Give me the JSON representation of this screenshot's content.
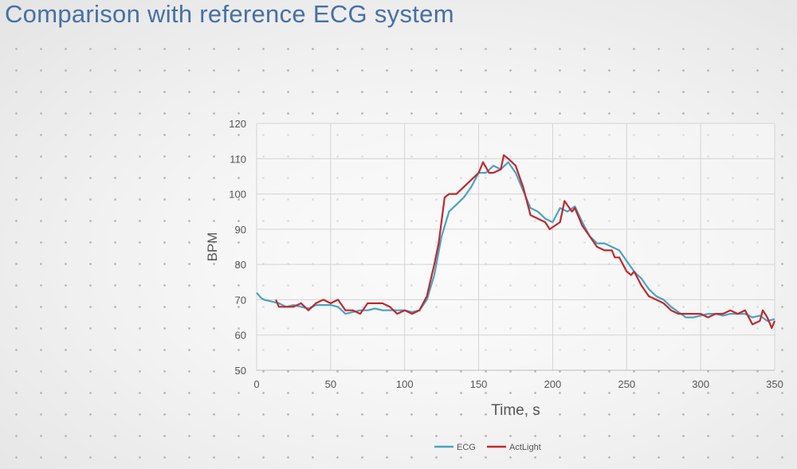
{
  "title": "Comparison with reference ECG system",
  "chart_data": {
    "type": "line",
    "title": "",
    "xlabel": "Time, s",
    "ylabel": "BPM",
    "xlim": [
      0,
      350
    ],
    "ylim": [
      50,
      120
    ],
    "xticks": [
      0,
      50,
      100,
      150,
      200,
      250,
      300,
      350
    ],
    "yticks": [
      50,
      60,
      70,
      80,
      90,
      100,
      110,
      120
    ],
    "grid": true,
    "legend": "bottom-center",
    "series": [
      {
        "name": "ECG",
        "color": "#4aa2c2",
        "x": [
          0,
          3,
          5,
          10,
          15,
          20,
          25,
          30,
          35,
          40,
          45,
          50,
          55,
          60,
          65,
          70,
          75,
          80,
          85,
          90,
          95,
          100,
          105,
          110,
          115,
          120,
          125,
          130,
          135,
          140,
          145,
          150,
          155,
          160,
          165,
          170,
          175,
          180,
          185,
          190,
          195,
          200,
          205,
          210,
          215,
          220,
          225,
          230,
          235,
          240,
          245,
          250,
          255,
          260,
          265,
          270,
          275,
          280,
          285,
          290,
          295,
          300,
          305,
          310,
          315,
          320,
          325,
          330,
          335,
          340,
          345,
          350
        ],
        "y": [
          72,
          70.5,
          70,
          69.5,
          69,
          68,
          68.5,
          68,
          67.5,
          68.5,
          68.5,
          68.5,
          68,
          66,
          66.5,
          67,
          67,
          67.5,
          67,
          67,
          67,
          67,
          66.5,
          67,
          70,
          77,
          88,
          95,
          97,
          99,
          102,
          106,
          106,
          108,
          107,
          109,
          106,
          101,
          96,
          95,
          93,
          92,
          96,
          95,
          96.5,
          92,
          88,
          86,
          86,
          85,
          84,
          81,
          78,
          76,
          73,
          71,
          70,
          68,
          66.5,
          65,
          65,
          65.5,
          66,
          66,
          65.5,
          66,
          66,
          66,
          65,
          65.5,
          64,
          64.5
        ]
      },
      {
        "name": "ActLight",
        "color": "#c0282d",
        "x": [
          13,
          15,
          20,
          25,
          30,
          35,
          40,
          45,
          50,
          55,
          60,
          65,
          70,
          75,
          80,
          85,
          90,
          95,
          100,
          105,
          110,
          115,
          120,
          123,
          127,
          130,
          135,
          140,
          145,
          150,
          153,
          157,
          160,
          165,
          167,
          170,
          175,
          180,
          185,
          190,
          195,
          198,
          205,
          208,
          213,
          215,
          220,
          225,
          230,
          235,
          240,
          242,
          245,
          250,
          253,
          255,
          260,
          265,
          270,
          275,
          280,
          285,
          290,
          295,
          300,
          305,
          310,
          315,
          320,
          325,
          330,
          335,
          340,
          342,
          345,
          348,
          350
        ],
        "y": [
          70,
          68,
          68,
          68,
          69,
          67,
          69,
          70,
          69,
          70,
          67,
          67,
          66,
          69,
          69,
          69,
          68,
          66,
          67,
          66,
          67,
          71,
          80,
          86,
          99,
          100,
          100,
          102,
          104,
          106,
          109,
          106,
          106,
          107,
          111,
          110,
          108,
          102,
          94,
          93,
          92,
          90,
          92,
          98,
          95,
          96,
          91,
          88,
          85,
          84,
          84,
          82,
          82,
          78,
          77,
          78,
          74,
          71,
          70,
          69,
          67,
          66,
          66,
          66,
          66,
          65,
          66,
          66,
          67,
          66,
          67,
          63,
          64,
          67,
          65,
          62,
          64
        ]
      }
    ]
  }
}
